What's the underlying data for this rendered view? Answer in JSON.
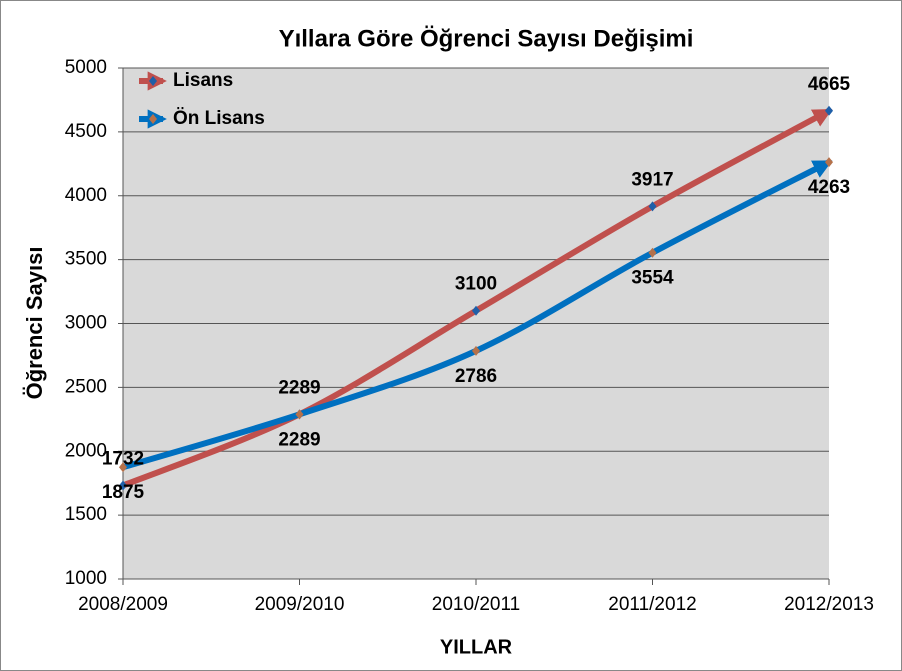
{
  "chart_data": {
    "type": "line",
    "title": "Yıllara Göre Öğrenci Sayısı Değişimi",
    "x_label": "YILLAR",
    "y_label": "Öğrenci Sayısı",
    "categories": [
      "2008/2009",
      "2009/2010",
      "2010/2011",
      "2011/2012",
      "2012/2013"
    ],
    "series": [
      {
        "name": "Lisans",
        "color": "#c0504d",
        "marker_color": "#1f5fa8",
        "values": [
          1732,
          2289,
          3100,
          3917,
          4665
        ]
      },
      {
        "name": "Ön Lisans",
        "color": "#0070c0",
        "marker_color": "#b5714a",
        "values": [
          1875,
          2289,
          2786,
          3554,
          4263
        ]
      }
    ],
    "ylim": [
      1000,
      5000
    ],
    "yticks": [
      1000,
      1500,
      2000,
      2500,
      3000,
      3500,
      4000,
      4500,
      5000
    ],
    "grid": true,
    "legend": "top-left",
    "smooth": true
  }
}
